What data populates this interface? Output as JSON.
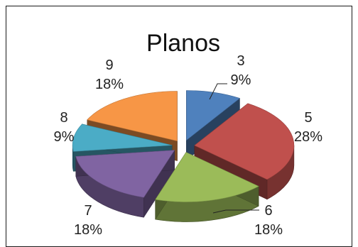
{
  "chart_data": {
    "type": "pie",
    "title": "Planos",
    "exploded": true,
    "three_d": true,
    "slices": [
      {
        "category": "3",
        "value": 9,
        "label": "9%",
        "color": "#4f81bd"
      },
      {
        "category": "5",
        "value": 28,
        "label": "28%",
        "color": "#c0504d"
      },
      {
        "category": "6",
        "value": 18,
        "label": "18%",
        "color": "#9bbb59"
      },
      {
        "category": "7",
        "value": 18,
        "label": "18%",
        "color": "#8064a2"
      },
      {
        "category": "8",
        "value": 9,
        "label": "9%",
        "color": "#4bacc6"
      },
      {
        "category": "9",
        "value": 18,
        "label": "18%",
        "color": "#f79646"
      }
    ]
  }
}
